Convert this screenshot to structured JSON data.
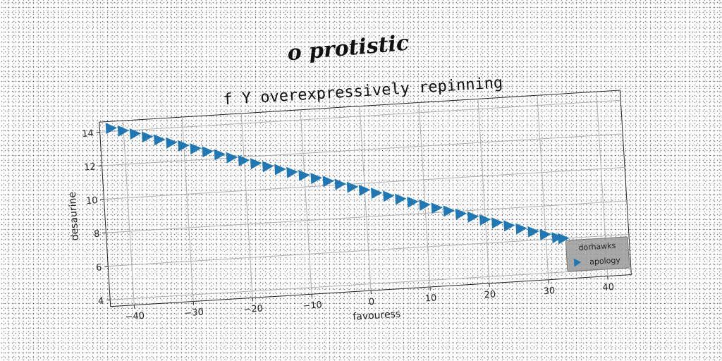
{
  "chart_data": {
    "type": "scatter",
    "suptitle": "o protistic",
    "title": "f Y overexpressively repinning",
    "xlabel": "favouress",
    "ylabel": "desaurine",
    "xlim": [
      -44,
      44
    ],
    "ylim": [
      3.6,
      14.6
    ],
    "xticks": [
      -40,
      -30,
      -20,
      -10,
      0,
      10,
      20,
      30,
      40
    ],
    "yticks": [
      4,
      6,
      8,
      10,
      12,
      14
    ],
    "grid": true,
    "legend": {
      "title": "dorhawks",
      "placement": "lower-right"
    },
    "series": [
      {
        "name": "apology",
        "marker": "triangle-right",
        "color": "#1f77b4",
        "x": [
          -42,
          -40,
          -38,
          -36,
          -34,
          -32,
          -30,
          -28,
          -26,
          -24,
          -22,
          -20,
          -18,
          -16,
          -14,
          -12,
          -10,
          -8,
          -6,
          -4,
          -2,
          0,
          2,
          4,
          6,
          8,
          10,
          12,
          14,
          16,
          18,
          20,
          22,
          24,
          26,
          28,
          30,
          32,
          33
        ],
        "y": [
          14.2,
          14.0,
          13.78,
          13.56,
          13.34,
          13.12,
          12.9,
          12.68,
          12.46,
          12.24,
          12.02,
          11.8,
          11.58,
          11.36,
          11.14,
          10.92,
          10.7,
          10.48,
          10.26,
          10.04,
          9.82,
          9.6,
          9.38,
          9.16,
          8.94,
          8.72,
          8.5,
          8.28,
          8.06,
          7.84,
          7.62,
          7.4,
          7.18,
          6.96,
          6.74,
          6.52,
          6.3,
          6.08,
          6.0
        ]
      }
    ]
  }
}
